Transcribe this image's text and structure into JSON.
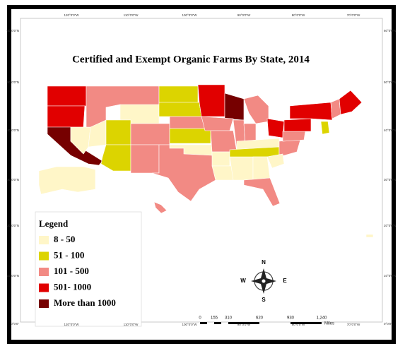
{
  "title": "Certified and Exempt Organic Farms By State, 2014",
  "legend": {
    "title": "Legend",
    "items": [
      {
        "label": "8 - 50",
        "color": "#fff6c8"
      },
      {
        "label": "51 - 100",
        "color": "#dcd400"
      },
      {
        "label": "101 - 500",
        "color": "#f28a84"
      },
      {
        "label": "501- 1000",
        "color": "#e10000"
      },
      {
        "label": "More than 1000",
        "color": "#760000"
      }
    ]
  },
  "graticule": {
    "longitudes": [
      "120°0'0\"W",
      "110°0'0\"W",
      "100°0'0\"W",
      "90°0'0\"W",
      "80°0'0\"W",
      "70°0'0\"W"
    ],
    "latitudes": [
      "60°0'0\"N",
      "50°0'0\"N",
      "40°0'0\"N",
      "30°0'0\"N",
      "20°0'0\"N",
      "10°0'0\"N",
      "0°0'0\""
    ]
  },
  "compass": {
    "north": "N",
    "south": "S",
    "east": "E",
    "west": "W"
  },
  "scale_bar": {
    "labels": [
      "0",
      "155",
      "310",
      "620",
      "930",
      "1,240"
    ],
    "unit": "Miles"
  }
}
